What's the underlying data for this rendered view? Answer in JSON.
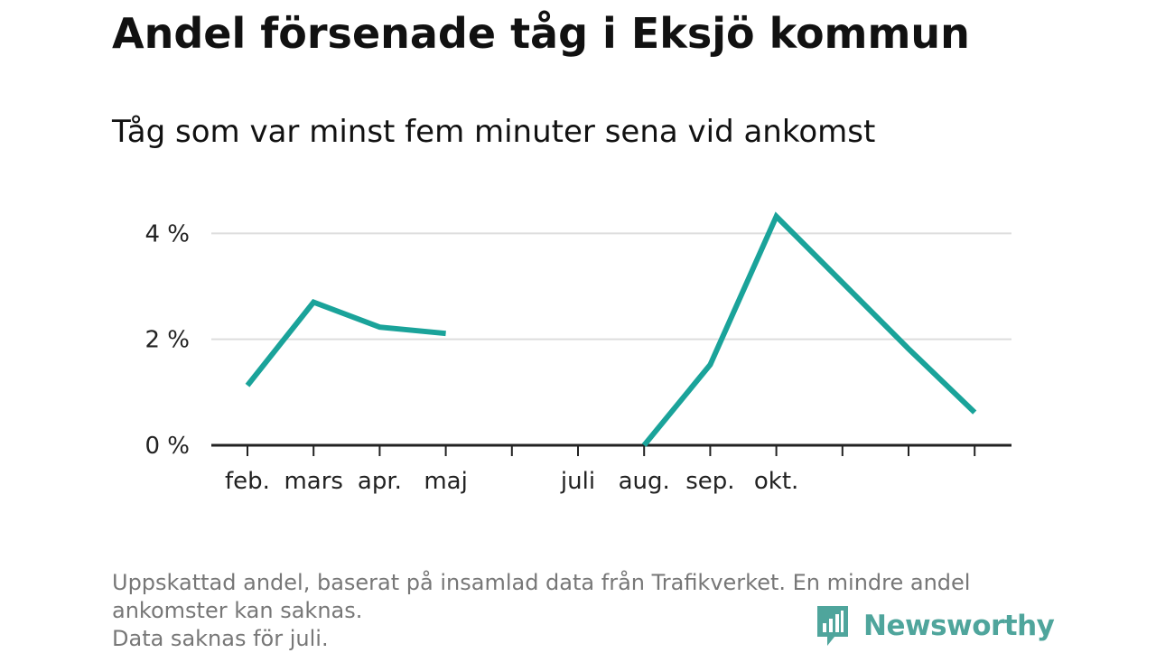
{
  "title": "Andel försenade tåg i Eksjö kommun",
  "subtitle": "Tåg som var minst fem minuter sena vid ankomst",
  "footnote": {
    "line1": "Uppskattad andel, baserat på insamlad data från Trafikverket. En mindre andel",
    "line2": "ankomster kan saknas.",
    "line3": "Data saknas för juli."
  },
  "brand": {
    "name": "Newsworthy"
  },
  "colors": {
    "line": "#1aa39a",
    "grid": "#dddddd",
    "axis": "#222222"
  },
  "chart_data": {
    "type": "line",
    "categories": [
      "feb.",
      "mars",
      "apr.",
      "maj",
      "",
      "juli",
      "aug.",
      "sep.",
      "okt.",
      "",
      "",
      ""
    ],
    "series": [
      {
        "values": [
          1.13,
          2.7,
          2.23,
          2.11,
          null,
          null,
          0.0,
          1.52,
          4.32,
          3.07,
          1.82,
          0.62
        ]
      }
    ],
    "y_ticks": [
      {
        "value": 0,
        "label": "0 %"
      },
      {
        "value": 2,
        "label": "2 %"
      },
      {
        "value": 4,
        "label": "4 %"
      }
    ],
    "ylim": [
      0,
      4.5
    ],
    "grid": true
  }
}
